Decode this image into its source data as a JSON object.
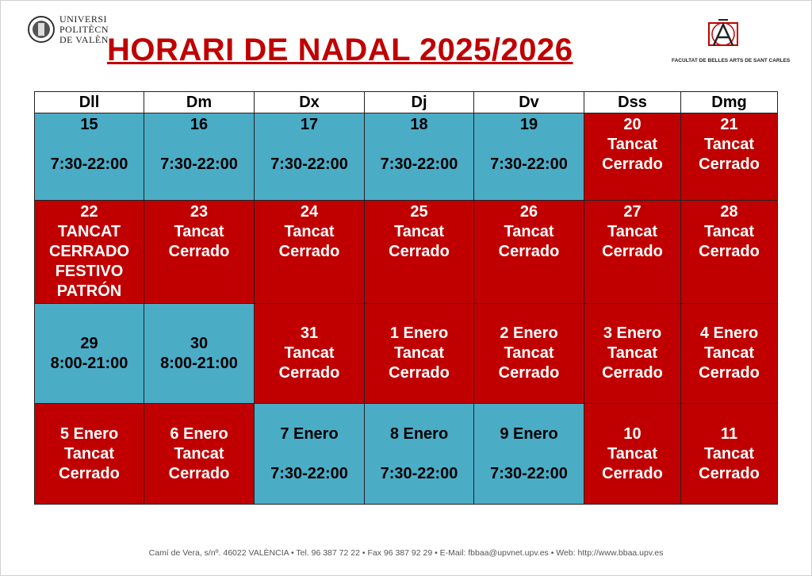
{
  "logo_left": {
    "lines": [
      "UNIVERSI",
      "POLITÈCN",
      "DE VALÈN"
    ]
  },
  "title": "HORARI DE NADAL 2025/2026",
  "logo_right": {
    "caption": "FACULTAT DE BELLES ARTS DE SANT CARLES"
  },
  "table": {
    "header": [
      "Dll",
      "Dm",
      "Dx",
      "Dj",
      "Dv",
      "Dss",
      "Dmg"
    ],
    "rows": [
      [
        {
          "lines": [
            "15",
            "7:30-22:00"
          ],
          "color": "#4bacc6"
        },
        {
          "lines": [
            "16",
            "7:30-22:00"
          ],
          "color": "#4bacc6"
        },
        {
          "lines": [
            "17",
            "7:30-22:00"
          ],
          "color": "#4bacc6"
        },
        {
          "lines": [
            "18",
            "7:30-22:00"
          ],
          "color": "#4bacc6"
        },
        {
          "lines": [
            "19",
            "7:30-22:00"
          ],
          "color": "#4bacc6"
        },
        {
          "lines": [
            "20",
            "Tancat",
            "Cerrado"
          ],
          "color": "#c00000"
        },
        {
          "lines": [
            "21",
            "Tancat",
            "Cerrado"
          ],
          "color": "#c00000"
        }
      ],
      [
        {
          "lines": [
            "22",
            "TANCAT",
            "CERRADO",
            "FESTIVO",
            "PATRÓN"
          ],
          "color": "#c00000"
        },
        {
          "lines": [
            "23",
            "Tancat",
            "Cerrado"
          ],
          "color": "#c00000"
        },
        {
          "lines": [
            "24",
            "Tancat",
            "Cerrado"
          ],
          "color": "#c00000"
        },
        {
          "lines": [
            "25",
            "Tancat",
            "Cerrado"
          ],
          "color": "#c00000"
        },
        {
          "lines": [
            "26",
            "Tancat",
            "Cerrado"
          ],
          "color": "#c00000"
        },
        {
          "lines": [
            "27",
            "Tancat",
            "Cerrado"
          ],
          "color": "#c00000"
        },
        {
          "lines": [
            "28",
            "Tancat",
            "Cerrado"
          ],
          "color": "#c00000"
        }
      ],
      [
        {
          "lines": [
            "29",
            "8:00-21:00"
          ],
          "color": "#4bacc6"
        },
        {
          "lines": [
            "30",
            "8:00-21:00"
          ],
          "color": "#4bacc6"
        },
        {
          "lines": [
            "31",
            "Tancat",
            "Cerrado"
          ],
          "color": "#c00000"
        },
        {
          "lines": [
            "1 Enero",
            "Tancat",
            "Cerrado"
          ],
          "color": "#c00000"
        },
        {
          "lines": [
            "2 Enero",
            "Tancat",
            "Cerrado"
          ],
          "color": "#c00000"
        },
        {
          "lines": [
            "3 Enero",
            "Tancat",
            "Cerrado"
          ],
          "color": "#c00000"
        },
        {
          "lines": [
            "4 Enero",
            "Tancat",
            "Cerrado"
          ],
          "color": "#c00000"
        }
      ],
      [
        {
          "lines": [
            "5 Enero",
            "Tancat",
            "Cerrado"
          ],
          "color": "#c00000"
        },
        {
          "lines": [
            "6 Enero",
            "Tancat",
            "Cerrado"
          ],
          "color": "#c00000"
        },
        {
          "lines": [
            "7 Enero",
            "7:30-22:00"
          ],
          "color": "#4bacc6"
        },
        {
          "lines": [
            "8 Enero",
            "7:30-22:00"
          ],
          "color": "#4bacc6"
        },
        {
          "lines": [
            "9 Enero",
            "7:30-22:00"
          ],
          "color": "#4bacc6"
        },
        {
          "lines": [
            "10",
            "Tancat",
            "Cerrado"
          ],
          "color": "#c00000"
        },
        {
          "lines": [
            "11",
            "Tancat",
            "Cerrado"
          ],
          "color": "#c00000"
        }
      ]
    ]
  },
  "footer": "Camí de Vera, s/nº. 46022 VALÈNCIA • Tel. 96 387 72 22 • Fax 96 387 92 29 • E-Mail: fbbaa@upvnet.upv.es • Web: http://www.bbaa.upv.es"
}
